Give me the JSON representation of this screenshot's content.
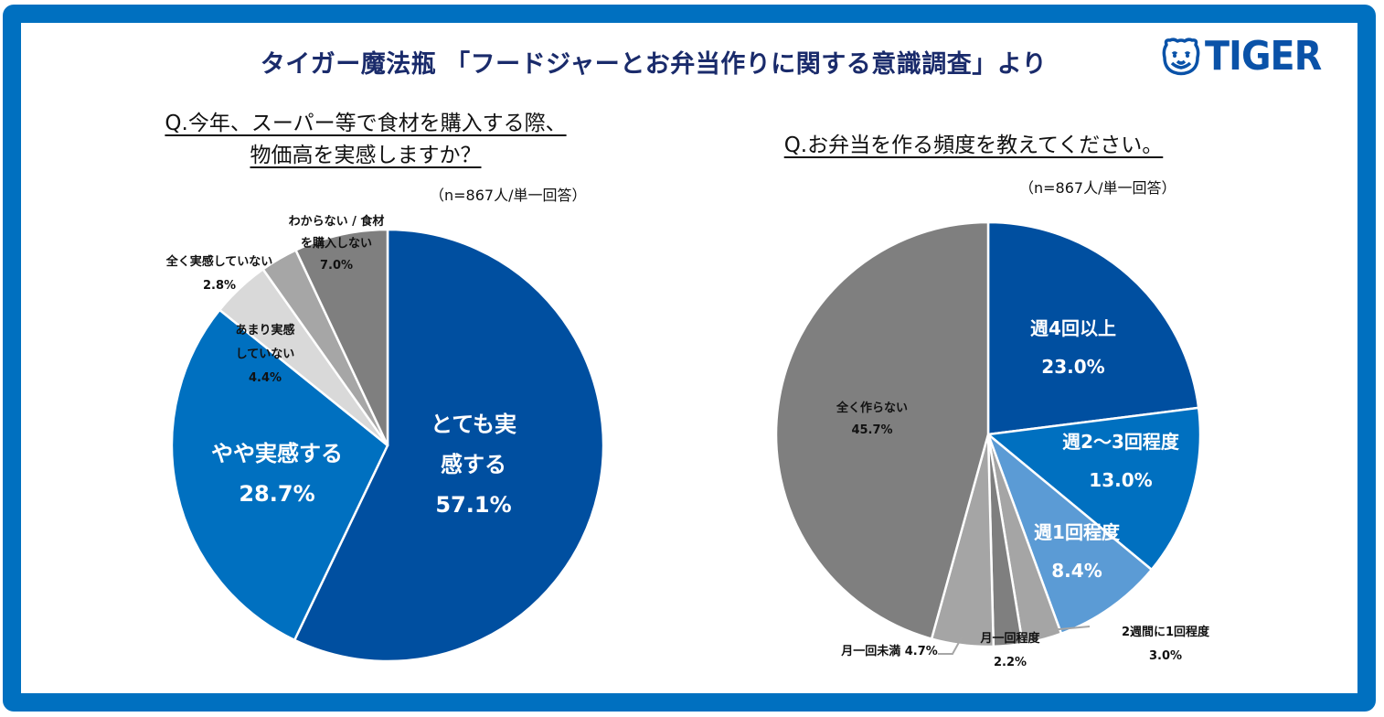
{
  "header": {
    "title": "タイガー魔法瓶 「フードジャーとお弁当作りに関する意識調査」より",
    "logo_text": "TIGER",
    "logo_icon": "tiger-face-icon"
  },
  "colors": {
    "frame": "#0070c0",
    "title": "#1a2b6b",
    "logo": "#0a52a8"
  },
  "chart_data": [
    {
      "type": "pie",
      "title": "Q.今年、スーパー等で食材を購入する際、物価高を実感しますか？",
      "title_lines": [
        "Q.今年、スーパー等で食材を購入する際、",
        "物価高を実感しますか？"
      ],
      "note": "（n=867人/単一回答）",
      "unit": "%",
      "start": "12 o'clock, clockwise",
      "slices": [
        {
          "label": "とても実感する",
          "label_lines": [
            "とても実",
            "感する"
          ],
          "value": 57.1,
          "value_label": "57.1%",
          "color": "#004fa0",
          "text_color": "#ffffff"
        },
        {
          "label": "やや実感する",
          "label_lines": [
            "やや実感する"
          ],
          "value": 28.7,
          "value_label": "28.7%",
          "color": "#0070c0",
          "text_color": "#ffffff"
        },
        {
          "label": "あまり実感していない",
          "label_lines": [
            "あまり実感",
            "していない"
          ],
          "value": 4.4,
          "value_label": "4.4%",
          "color": "#d9d9d9",
          "text_color": "#111111"
        },
        {
          "label": "全く実感していない",
          "label_lines": [
            "全く実感していない"
          ],
          "value": 2.8,
          "value_label": "2.8%",
          "color": "#a6a6a6",
          "text_color": "#111111"
        },
        {
          "label": "わからない / 食材を購入しない",
          "label_lines": [
            "わからない / 食材",
            "を購入しない"
          ],
          "value": 7.0,
          "value_label": "7.0%",
          "color": "#7f7f7f",
          "text_color": "#111111"
        }
      ]
    },
    {
      "type": "pie",
      "title": "Q.お弁当を作る頻度を教えてください。",
      "title_lines": [
        "Q.お弁当を作る頻度を教えてください。"
      ],
      "note": "（n=867人/単一回答）",
      "unit": "%",
      "start": "12 o'clock, clockwise",
      "slices": [
        {
          "label": "週4回以上",
          "label_lines": [
            "週4回以上"
          ],
          "value": 23.0,
          "value_label": "23.0%",
          "color": "#004fa0",
          "text_color": "#ffffff"
        },
        {
          "label": "週2～3回程度",
          "label_lines": [
            "週2～3回程度"
          ],
          "value": 13.0,
          "value_label": "13.0%",
          "color": "#0070c0",
          "text_color": "#ffffff"
        },
        {
          "label": "週1回程度",
          "label_lines": [
            "週1回程度"
          ],
          "value": 8.4,
          "value_label": "8.4%",
          "color": "#5b9bd5",
          "text_color": "#ffffff"
        },
        {
          "label": "2週間に1回程度",
          "label_lines": [
            "2週間に1回程度"
          ],
          "value": 3.0,
          "value_label": "3.0%",
          "color": "#a5a5a5",
          "text_color": "#111111"
        },
        {
          "label": "月一回程度",
          "label_lines": [
            "月一回程度"
          ],
          "value": 2.2,
          "value_label": "2.2%",
          "color": "#7f7f7f",
          "text_color": "#111111"
        },
        {
          "label": "月一回未満",
          "label_lines": [
            "月一回未満 4.7%"
          ],
          "value": 4.7,
          "value_label": "4.7%",
          "color": "#a5a5a5",
          "text_color": "#111111"
        },
        {
          "label": "全く作らない",
          "label_lines": [
            "全く作らない"
          ],
          "value": 45.7,
          "value_label": "45.7%",
          "color": "#7f7f7f",
          "text_color": "#111111"
        }
      ]
    }
  ]
}
